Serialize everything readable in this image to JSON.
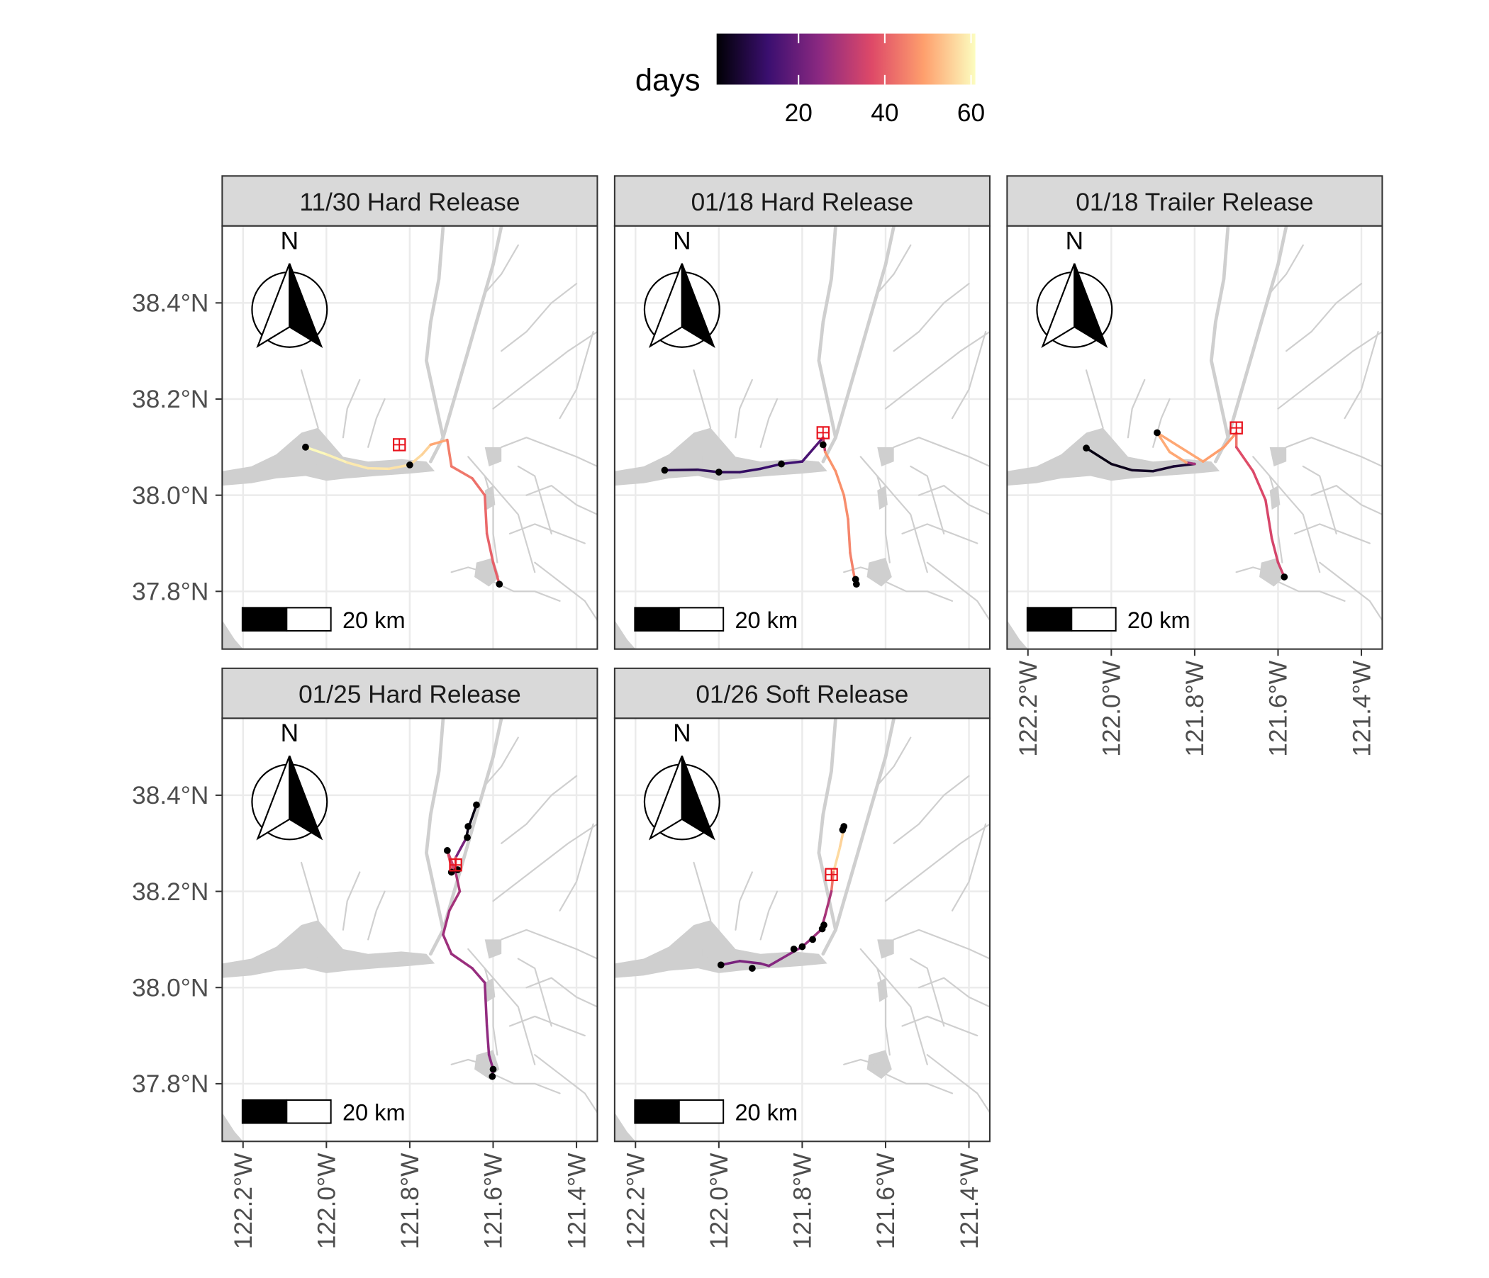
{
  "legend": {
    "title": "days",
    "ticks": [
      20,
      40,
      60
    ],
    "range": [
      1,
      61
    ],
    "colors": [
      "#000004",
      "#3b0f70",
      "#8c2981",
      "#de4968",
      "#fe9f6d",
      "#fcfdbf"
    ]
  },
  "map": {
    "lon_range": [
      -122.25,
      -121.35
    ],
    "lat_range": [
      37.68,
      38.56
    ],
    "x_ticks": [
      -122.2,
      -122.0,
      -121.8,
      -121.6,
      -121.4
    ],
    "x_tick_labels": [
      "122.2°W",
      "122.0°W",
      "121.8°W",
      "121.6°W",
      "121.4°W"
    ],
    "y_ticks": [
      37.8,
      38.0,
      38.2,
      38.4
    ],
    "y_tick_labels": [
      "37.8°N",
      "38.0°N",
      "38.2°N",
      "38.4°N"
    ],
    "north_label": "N",
    "scale_label": "20 km"
  },
  "panels": [
    {
      "title": "11/30 Hard Release",
      "release": [
        -121.825,
        38.105
      ],
      "track": [
        [
          -122.05,
          38.1,
          61
        ],
        [
          -122.0,
          38.085,
          60
        ],
        [
          -121.95,
          38.068,
          59
        ],
        [
          -121.9,
          38.056,
          58
        ],
        [
          -121.85,
          38.055,
          58
        ],
        [
          -121.8,
          38.063,
          57
        ],
        [
          -121.77,
          38.085,
          56
        ],
        [
          -121.75,
          38.105,
          55
        ],
        [
          -121.71,
          38.115,
          45
        ],
        [
          -121.7,
          38.06,
          44
        ],
        [
          -121.65,
          38.035,
          43
        ],
        [
          -121.62,
          38.0,
          42
        ],
        [
          -121.615,
          37.92,
          41
        ],
        [
          -121.6,
          37.86,
          40
        ],
        [
          -121.585,
          37.815,
          40
        ]
      ],
      "detections": [
        [
          -122.05,
          38.1
        ],
        [
          -121.8,
          38.063
        ],
        [
          -121.585,
          37.815
        ]
      ]
    },
    {
      "title": "01/18 Hard Release",
      "release": [
        -121.75,
        38.13
      ],
      "track": [
        [
          -122.13,
          38.052,
          9
        ],
        [
          -122.05,
          38.053,
          10
        ],
        [
          -122.0,
          38.048,
          11
        ],
        [
          -121.95,
          38.048,
          11
        ],
        [
          -121.9,
          38.055,
          12
        ],
        [
          -121.85,
          38.065,
          13
        ],
        [
          -121.8,
          38.07,
          14
        ],
        [
          -121.77,
          38.1,
          16
        ],
        [
          -121.75,
          38.12,
          18
        ],
        [
          -121.745,
          38.09,
          48
        ],
        [
          -121.72,
          38.05,
          47
        ],
        [
          -121.7,
          38.0,
          47
        ],
        [
          -121.69,
          37.95,
          46
        ],
        [
          -121.685,
          37.88,
          45
        ],
        [
          -121.675,
          37.83,
          45
        ],
        [
          -121.67,
          37.815,
          45
        ]
      ],
      "detections": [
        [
          -122.13,
          38.052
        ],
        [
          -122.0,
          38.048
        ],
        [
          -121.85,
          38.065
        ],
        [
          -121.75,
          38.105
        ],
        [
          -121.672,
          37.825
        ],
        [
          -121.67,
          37.815
        ]
      ]
    },
    {
      "title": "01/18 Trailer Release",
      "release": [
        -121.7,
        38.14
      ],
      "track": [
        [
          -122.06,
          38.098,
          2
        ],
        [
          -122.0,
          38.065,
          3
        ],
        [
          -121.95,
          38.052,
          4
        ],
        [
          -121.9,
          38.05,
          5
        ],
        [
          -121.85,
          38.06,
          6
        ],
        [
          -121.8,
          38.065,
          7
        ],
        [
          -121.82,
          38.068,
          50
        ],
        [
          -121.86,
          38.09,
          50
        ],
        [
          -121.89,
          38.13,
          51
        ],
        [
          -121.78,
          38.07,
          49
        ],
        [
          -121.73,
          38.1,
          49
        ],
        [
          -121.7,
          38.13,
          48
        ],
        [
          -121.7,
          38.1,
          38
        ],
        [
          -121.66,
          38.05,
          37
        ],
        [
          -121.63,
          37.99,
          36
        ],
        [
          -121.615,
          37.91,
          36
        ],
        [
          -121.6,
          37.86,
          35
        ],
        [
          -121.585,
          37.83,
          35
        ]
      ],
      "detections": [
        [
          -122.06,
          38.098
        ],
        [
          -121.89,
          38.13
        ],
        [
          -121.585,
          37.83
        ]
      ]
    },
    {
      "title": "01/25 Hard Release",
      "release": [
        -121.69,
        38.255
      ],
      "track": [
        [
          -121.64,
          38.38,
          2
        ],
        [
          -121.66,
          38.33,
          3
        ],
        [
          -121.665,
          38.31,
          4
        ],
        [
          -121.69,
          38.27,
          40
        ],
        [
          -121.69,
          38.245,
          38
        ],
        [
          -121.7,
          38.25,
          39
        ],
        [
          -121.71,
          38.285,
          40
        ],
        [
          -121.69,
          38.24,
          30
        ],
        [
          -121.68,
          38.2,
          29
        ],
        [
          -121.705,
          38.16,
          28
        ],
        [
          -121.72,
          38.11,
          28
        ],
        [
          -121.7,
          38.07,
          27
        ],
        [
          -121.65,
          38.04,
          27
        ],
        [
          -121.62,
          38.01,
          26
        ],
        [
          -121.615,
          37.92,
          26
        ],
        [
          -121.61,
          37.86,
          25
        ],
        [
          -121.6,
          37.83,
          25
        ],
        [
          -121.602,
          37.815,
          25
        ]
      ],
      "detections": [
        [
          -121.64,
          38.38
        ],
        [
          -121.66,
          38.335
        ],
        [
          -121.662,
          38.312
        ],
        [
          -121.71,
          38.285
        ],
        [
          -121.7,
          38.24
        ],
        [
          -121.685,
          38.245
        ],
        [
          -121.6,
          37.83
        ],
        [
          -121.602,
          37.815
        ]
      ]
    },
    {
      "title": "01/26 Soft Release",
      "release": [
        -121.73,
        38.235
      ],
      "track": [
        [
          -121.7,
          38.335,
          55
        ],
        [
          -121.7,
          38.33,
          55
        ],
        [
          -121.71,
          38.29,
          56
        ],
        [
          -121.725,
          38.24,
          57
        ],
        [
          -121.73,
          38.2,
          30
        ],
        [
          -121.745,
          38.15,
          29
        ],
        [
          -121.755,
          38.12,
          28
        ],
        [
          -121.78,
          38.1,
          27
        ],
        [
          -121.8,
          38.085,
          26
        ],
        [
          -121.82,
          38.075,
          25
        ],
        [
          -121.85,
          38.06,
          24
        ],
        [
          -121.88,
          38.045,
          24
        ],
        [
          -121.9,
          38.05,
          23
        ],
        [
          -121.95,
          38.055,
          22
        ],
        [
          -121.995,
          38.047,
          22
        ]
      ],
      "detections": [
        [
          -121.7,
          38.335
        ],
        [
          -121.703,
          38.328
        ],
        [
          -121.748,
          38.13
        ],
        [
          -121.752,
          38.122
        ],
        [
          -121.775,
          38.1
        ],
        [
          -121.8,
          38.085
        ],
        [
          -121.82,
          38.08
        ],
        [
          -121.92,
          38.04
        ],
        [
          -121.995,
          38.047
        ]
      ]
    }
  ]
}
